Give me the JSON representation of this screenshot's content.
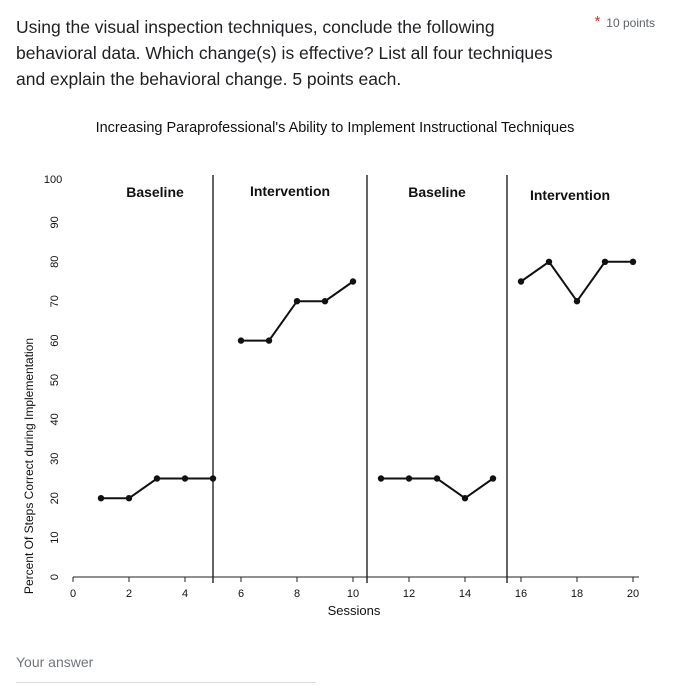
{
  "question": {
    "text": "Using the visual inspection techniques, conclude the following behavioral data. Which change(s) is effective? List all four techniques and explain the behavioral change. 5 points each.",
    "required_marker": "*",
    "points": "10 points"
  },
  "answer": {
    "placeholder": "Your answer"
  },
  "chart_data": {
    "type": "line",
    "title": "Increasing Paraprofessional's Ability to Implement Instructional Techniques",
    "xlabel": "Sessions",
    "ylabel": "Percent Of Steps Correct during Implementation",
    "xlim": [
      0,
      20
    ],
    "ylim": [
      0,
      100
    ],
    "x_ticks": [
      0,
      2,
      4,
      6,
      8,
      10,
      12,
      14,
      16,
      18,
      20
    ],
    "y_ticks": [
      0,
      10,
      20,
      30,
      40,
      50,
      60,
      70,
      80,
      90,
      100
    ],
    "phase_lines": [
      5,
      10.5,
      15.5
    ],
    "phases": [
      {
        "name": "Baseline",
        "x": [
          1,
          2,
          3,
          4,
          5
        ],
        "values": [
          20,
          20,
          25,
          25,
          25
        ]
      },
      {
        "name": "Intervention",
        "x": [
          6,
          7,
          8,
          9,
          10
        ],
        "values": [
          60,
          60,
          70,
          70,
          75
        ]
      },
      {
        "name": "Baseline",
        "x": [
          11,
          12,
          13,
          14,
          15
        ],
        "values": [
          25,
          25,
          25,
          20,
          25
        ]
      },
      {
        "name": "Intervention",
        "x": [
          16,
          17,
          18,
          19,
          20
        ],
        "values": [
          75,
          80,
          70,
          80,
          80
        ]
      }
    ],
    "grid": false
  }
}
